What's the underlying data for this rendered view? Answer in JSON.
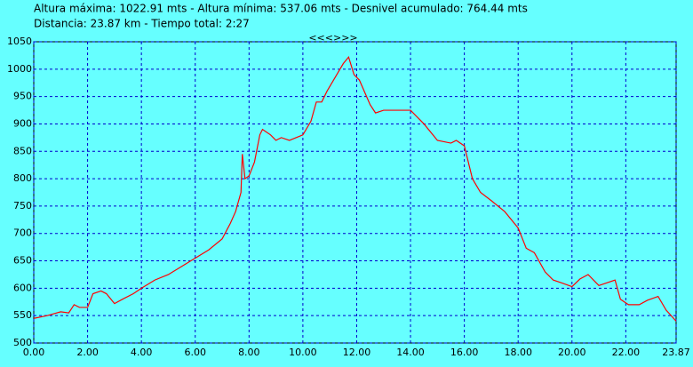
{
  "chart_data": {
    "type": "line",
    "summary": "Altura máxima: 1022.91 mts - Altura mínima: 537.06 mts - Desnivel acumulado: 764.44 mts",
    "summary2": "Distancia: 23.87 km - Tiempo total: 2:27",
    "nav": "<<<>>>",
    "color": "#ff0000",
    "grid": true,
    "x": [
      0,
      0.5,
      1.0,
      1.3,
      1.5,
      1.7,
      2.0,
      2.2,
      2.5,
      2.7,
      3.0,
      3.3,
      3.7,
      4.0,
      4.5,
      5.0,
      5.5,
      6.0,
      6.5,
      7.0,
      7.3,
      7.5,
      7.7,
      7.75,
      7.85,
      8.0,
      8.2,
      8.4,
      8.5,
      8.8,
      9.0,
      9.2,
      9.5,
      10.0,
      10.3,
      10.5,
      10.7,
      10.9,
      11.2,
      11.5,
      11.7,
      11.9,
      12.1,
      12.5,
      12.7,
      13.0,
      13.5,
      14.0,
      14.5,
      15.0,
      15.5,
      15.7,
      16.0,
      16.3,
      16.6,
      17.0,
      17.5,
      18.0,
      18.3,
      18.6,
      19.0,
      19.3,
      19.6,
      20.0,
      20.3,
      20.6,
      21.0,
      21.6,
      21.8,
      22.1,
      22.5,
      22.8,
      23.2,
      23.5,
      23.87
    ],
    "values": [
      545,
      550,
      557,
      555,
      570,
      565,
      565,
      590,
      595,
      590,
      572,
      580,
      590,
      600,
      615,
      625,
      640,
      655,
      670,
      690,
      718,
      740,
      775,
      845,
      800,
      805,
      830,
      880,
      890,
      880,
      870,
      875,
      870,
      880,
      905,
      940,
      940,
      960,
      985,
      1010,
      1022,
      990,
      980,
      935,
      920,
      925,
      925,
      925,
      900,
      870,
      865,
      870,
      860,
      800,
      775,
      760,
      740,
      710,
      673,
      665,
      630,
      615,
      610,
      603,
      617,
      625,
      605,
      615,
      580,
      570,
      570,
      578,
      585,
      560,
      540
    ],
    "xlim": [
      0,
      23.87
    ],
    "ylim": [
      500,
      1050
    ],
    "xticks": [
      {
        "value": 0,
        "label": "0.00"
      },
      {
        "value": 2,
        "label": "2.00"
      },
      {
        "value": 4,
        "label": "4.00"
      },
      {
        "value": 6,
        "label": "6.00"
      },
      {
        "value": 8,
        "label": "8.00"
      },
      {
        "value": 10,
        "label": "10.00"
      },
      {
        "value": 12,
        "label": "12.00"
      },
      {
        "value": 14,
        "label": "14.00"
      },
      {
        "value": 16,
        "label": "16.00"
      },
      {
        "value": 18,
        "label": "18.00"
      },
      {
        "value": 20,
        "label": "20.00"
      },
      {
        "value": 22,
        "label": "22.00"
      },
      {
        "value": 23.87,
        "label": "23.87"
      }
    ],
    "yticks": [
      500,
      550,
      600,
      650,
      700,
      750,
      800,
      850,
      900,
      950,
      1000,
      1050
    ]
  }
}
